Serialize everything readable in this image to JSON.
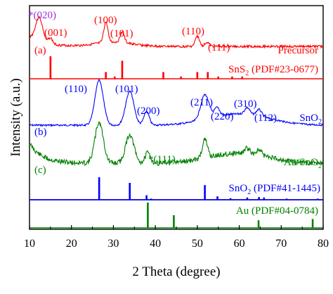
{
  "chart_data": {
    "type": "line",
    "xlabel": "2 Theta (degree)",
    "ylabel": "Intensity (a.u.)",
    "xlim": [
      10,
      80
    ],
    "xticks": [
      "10",
      "20",
      "30",
      "40",
      "50",
      "60",
      "70",
      "80"
    ],
    "grid": false,
    "curves": [
      {
        "name": "Precursor",
        "color": "#ff0000",
        "tag": "(a)",
        "labels": [
          "*(020)",
          "(001)",
          "(100)",
          "(101)",
          "(110)",
          "(111)"
        ],
        "peaks": [
          {
            "x": 12.3,
            "height": 1.0
          },
          {
            "x": 15.0,
            "height": 0.25
          },
          {
            "x": 28.2,
            "height": 0.85
          },
          {
            "x": 32.1,
            "height": 0.45
          },
          {
            "x": 50.0,
            "height": 0.42
          },
          {
            "x": 52.3,
            "height": 0.18
          }
        ]
      },
      {
        "name": "SnO2",
        "color": "#0000ff",
        "tag": "(b)",
        "labels": [
          "(110)",
          "(101)",
          "(200)",
          "(211)",
          "(220)",
          "(310)",
          "(112)"
        ],
        "peaks": [
          {
            "x": 26.6,
            "height": 1.0
          },
          {
            "x": 33.9,
            "height": 0.75
          },
          {
            "x": 37.9,
            "height": 0.3
          },
          {
            "x": 51.8,
            "height": 0.55
          },
          {
            "x": 54.7,
            "height": 0.2
          },
          {
            "x": 61.9,
            "height": 0.15
          },
          {
            "x": 64.7,
            "height": 0.15
          }
        ]
      },
      {
        "name": "Au/SnO2",
        "color": "#008000",
        "tag": "(c)",
        "labels": [
          "*(111)"
        ],
        "peaks": [
          {
            "x": 26.6,
            "height": 1.0
          },
          {
            "x": 33.9,
            "height": 0.7
          },
          {
            "x": 38.2,
            "height": 0.25
          },
          {
            "x": 51.8,
            "height": 0.45
          },
          {
            "x": 61.9,
            "height": 0.12
          },
          {
            "x": 64.7,
            "height": 0.12
          }
        ]
      }
    ],
    "reference_patterns": [
      {
        "name": "SnS2 (PDF#23-0677)",
        "color": "#ff0000",
        "lines": [
          {
            "x": 15.0,
            "height": 1.0
          },
          {
            "x": 28.2,
            "height": 0.3
          },
          {
            "x": 30.3,
            "height": 0.1
          },
          {
            "x": 32.1,
            "height": 0.8
          },
          {
            "x": 41.9,
            "height": 0.3
          },
          {
            "x": 46.1,
            "height": 0.1
          },
          {
            "x": 50.0,
            "height": 0.3
          },
          {
            "x": 52.5,
            "height": 0.3
          },
          {
            "x": 55.0,
            "height": 0.1
          },
          {
            "x": 58.3,
            "height": 0.1
          },
          {
            "x": 60.7,
            "height": 0.1
          }
        ]
      },
      {
        "name": "SnO2 (PDF#41-1445)",
        "color": "#0000ff",
        "lines": [
          {
            "x": 26.6,
            "height": 1.0
          },
          {
            "x": 33.9,
            "height": 0.75
          },
          {
            "x": 37.9,
            "height": 0.2
          },
          {
            "x": 39.0,
            "height": 0.05
          },
          {
            "x": 51.8,
            "height": 0.65
          },
          {
            "x": 54.8,
            "height": 0.15
          },
          {
            "x": 57.9,
            "height": 0.07
          },
          {
            "x": 61.9,
            "height": 0.1
          },
          {
            "x": 64.7,
            "height": 0.12
          },
          {
            "x": 65.9,
            "height": 0.1
          },
          {
            "x": 71.3,
            "height": 0.05
          },
          {
            "x": 78.7,
            "height": 0.05
          }
        ]
      },
      {
        "name": "Au (PDF#04-0784)",
        "color": "#008000",
        "lines": [
          {
            "x": 38.2,
            "height": 1.0
          },
          {
            "x": 44.4,
            "height": 0.5
          },
          {
            "x": 64.6,
            "height": 0.3
          },
          {
            "x": 77.5,
            "height": 0.35
          }
        ]
      }
    ]
  },
  "labels": {
    "a_020": "*(020)",
    "a_001": "(001)",
    "a_100": "(100)",
    "a_101": "(101)",
    "a_110": "(110)",
    "a_111": "(111)",
    "a_tag": "(a)",
    "a_name": "Precursor",
    "ref_sns2_prefix": "SnS",
    "ref_sns2_sub": "2",
    "ref_sns2_suffix": " (PDF#23-0677)",
    "b_110": "(110)",
    "b_101": "(101)",
    "b_200": "(200)",
    "b_211": "(211)",
    "b_220": "(220)",
    "b_310": "(310)",
    "b_112": "(112)",
    "b_tag": "(b)",
    "b_name_prefix": "SnO",
    "b_name_sub": "2",
    "c_111": "*(111)",
    "c_tag": "(c)",
    "c_name_prefix": "Au/SnO",
    "c_name_sub": "2",
    "ref_sno2_prefix": "SnO",
    "ref_sno2_sub": "2",
    "ref_sno2_suffix": " (PDF#41-1445)",
    "ref_au": "Au (PDF#04-0784)"
  }
}
